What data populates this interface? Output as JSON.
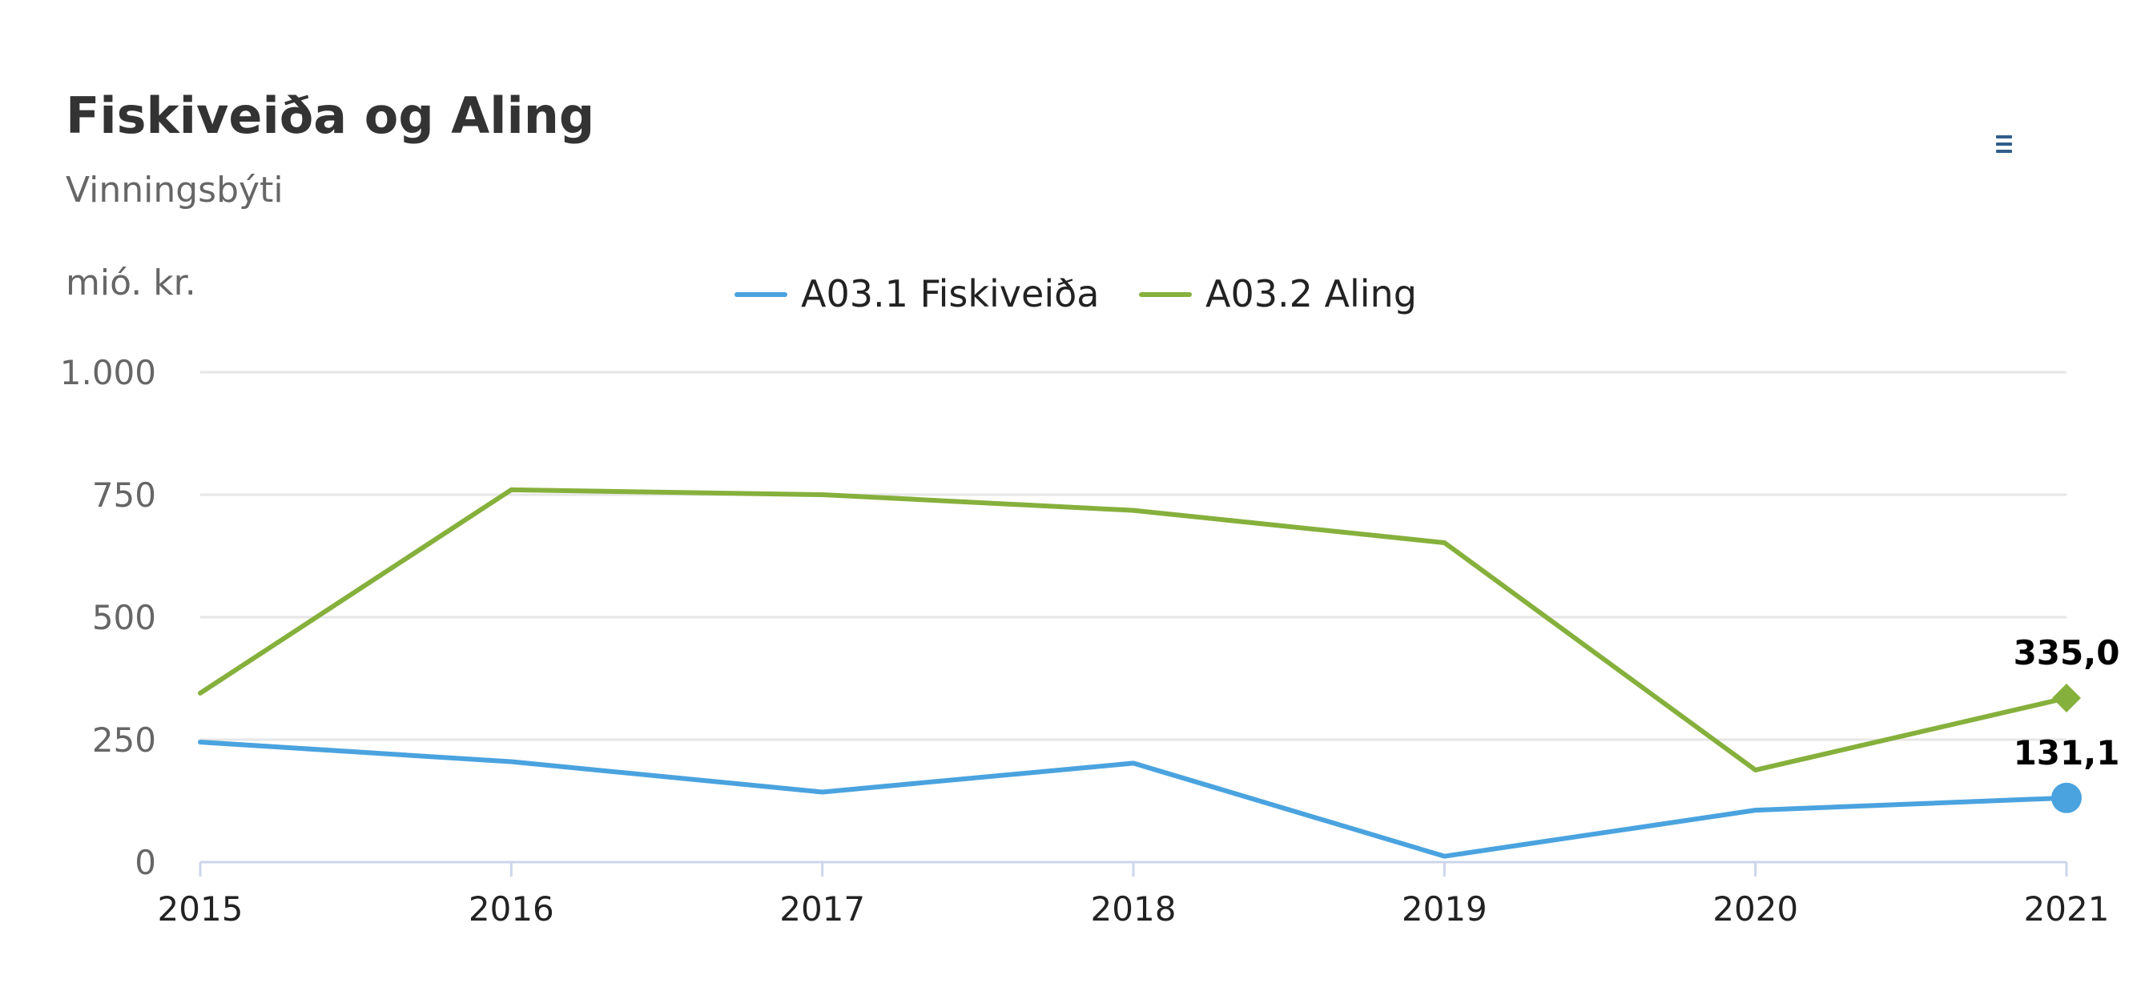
{
  "chart_data": {
    "type": "line",
    "title": "Fiskiveiða og Aling",
    "subtitle": "Vinningsbýti",
    "ylabel": "mió. kr.",
    "xlabel": "",
    "categories": [
      "2015",
      "2016",
      "2017",
      "2018",
      "2019",
      "2020",
      "2021"
    ],
    "ylim": [
      0,
      1000
    ],
    "yticks": [
      0,
      250,
      500,
      750,
      1000
    ],
    "ytick_labels": [
      "0",
      "250",
      "500",
      "750",
      "1.000"
    ],
    "grid": true,
    "legend_position": "top-center",
    "series": [
      {
        "name": "A03.1 Fiskiveiða",
        "color": "#4aa3df",
        "marker": "circle",
        "values": [
          245,
          205,
          143,
          202,
          12,
          106,
          131.1
        ],
        "end_label": "131,1"
      },
      {
        "name": "A03.2 Aling",
        "color": "#86b03c",
        "marker": "diamond",
        "values": [
          345,
          760,
          750,
          718,
          652,
          188,
          335.0
        ],
        "end_label": "335,0"
      }
    ]
  },
  "menu": {
    "icon": "hamburger-menu-icon"
  }
}
